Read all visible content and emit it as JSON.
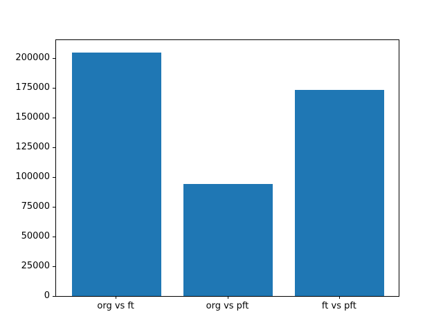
{
  "figure": {
    "background": "#ffffff"
  },
  "chart_data": {
    "type": "bar",
    "title": "",
    "xlabel": "",
    "ylabel": "",
    "categories": [
      "org vs ft",
      "org vs pft",
      "ft vs pft"
    ],
    "values": [
      204600,
      94200,
      173200
    ],
    "bar_color": "#1f77b4",
    "bar_width": 0.8,
    "xlim": [
      -0.54,
      2.54
    ],
    "ylim": [
      0,
      215000
    ],
    "yticks": [
      0,
      25000,
      50000,
      75000,
      100000,
      125000,
      150000,
      175000,
      200000
    ],
    "ytick_labels": [
      "0",
      "25000",
      "50000",
      "75000",
      "100000",
      "125000",
      "150000",
      "175000",
      "200000"
    ],
    "grid": false,
    "legend": null
  }
}
